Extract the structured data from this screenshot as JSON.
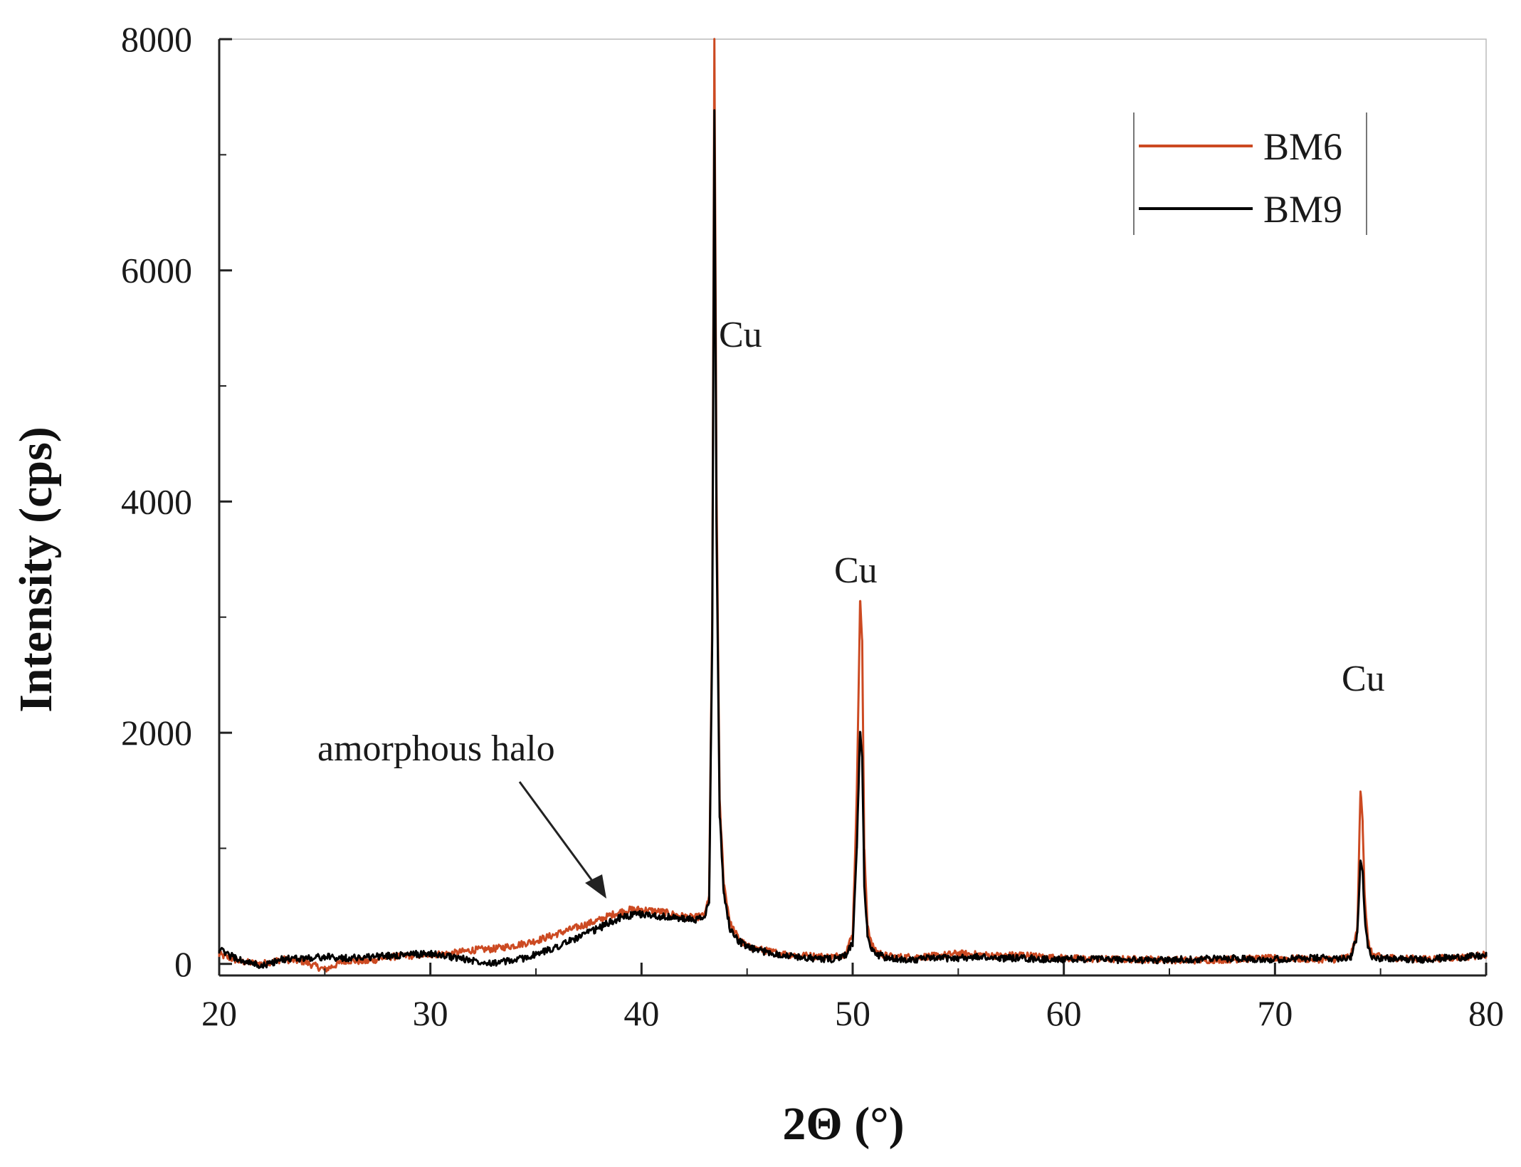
{
  "chart_data": {
    "type": "line",
    "xlabel": "2Θ (°)",
    "ylabel": "Intensity (cps)",
    "xlim": [
      20,
      80
    ],
    "ylim": [
      -100,
      8000
    ],
    "xticks": [
      20,
      30,
      40,
      50,
      60,
      70,
      80
    ],
    "yticks": [
      0,
      2000,
      4000,
      6000,
      8000
    ],
    "grid": false,
    "legend_position": "top-right",
    "series": [
      {
        "name": "BM6",
        "color": "#cc4a22",
        "x": [
          20,
          21,
          22,
          23,
          24,
          25,
          26,
          27,
          28,
          29,
          30,
          31,
          32,
          33,
          34,
          35,
          36,
          37,
          38,
          38.5,
          39,
          39.5,
          40,
          40.5,
          41,
          41.5,
          42,
          42.5,
          43,
          43.2,
          43.35,
          43.45,
          43.55,
          43.7,
          43.9,
          44.2,
          44.6,
          45,
          46,
          47,
          48,
          49,
          49.6,
          50,
          50.2,
          50.35,
          50.45,
          50.55,
          50.7,
          50.9,
          51.2,
          51.6,
          52,
          53,
          54,
          55,
          56,
          57,
          58,
          59,
          60,
          62,
          64,
          66,
          68,
          70,
          72,
          73,
          73.6,
          73.9,
          74.05,
          74.15,
          74.25,
          74.4,
          74.6,
          75,
          76,
          77,
          78,
          79,
          80
        ],
        "y": [
          80,
          20,
          0,
          40,
          20,
          -50,
          30,
          20,
          60,
          70,
          80,
          90,
          120,
          130,
          160,
          200,
          260,
          320,
          380,
          420,
          450,
          470,
          470,
          460,
          450,
          430,
          410,
          400,
          420,
          600,
          3000,
          8000,
          4200,
          1400,
          700,
          350,
          220,
          150,
          110,
          80,
          70,
          60,
          80,
          250,
          1500,
          3150,
          2800,
          1000,
          350,
          160,
          100,
          70,
          60,
          60,
          70,
          90,
          80,
          70,
          80,
          60,
          50,
          40,
          40,
          30,
          40,
          50,
          40,
          40,
          70,
          300,
          1500,
          1250,
          600,
          200,
          80,
          60,
          50,
          40,
          50,
          60,
          80
        ]
      },
      {
        "name": "BM9",
        "color": "#000000",
        "x": [
          20,
          21,
          22,
          23,
          24,
          25,
          26,
          27,
          28,
          29,
          30,
          31,
          32,
          33,
          34,
          35,
          36,
          37,
          38,
          38.5,
          39,
          39.5,
          40,
          40.5,
          41,
          41.5,
          42,
          42.5,
          43,
          43.2,
          43.35,
          43.45,
          43.55,
          43.7,
          43.9,
          44.2,
          44.6,
          45,
          46,
          47,
          48,
          49,
          49.6,
          50,
          50.2,
          50.35,
          50.45,
          50.55,
          50.7,
          50.9,
          51.2,
          51.6,
          52,
          53,
          54,
          55,
          56,
          57,
          58,
          59,
          60,
          62,
          64,
          66,
          68,
          70,
          72,
          73,
          73.6,
          73.9,
          74.05,
          74.15,
          74.25,
          74.4,
          74.6,
          75,
          76,
          77,
          78,
          79,
          80
        ],
        "y": [
          120,
          30,
          -20,
          40,
          50,
          60,
          50,
          60,
          70,
          80,
          90,
          60,
          30,
          10,
          30,
          80,
          150,
          230,
          310,
          360,
          400,
          420,
          430,
          420,
          410,
          400,
          390,
          380,
          400,
          550,
          2800,
          7400,
          3800,
          1300,
          600,
          300,
          200,
          140,
          100,
          70,
          50,
          40,
          60,
          180,
          1000,
          2000,
          1800,
          700,
          250,
          120,
          80,
          50,
          40,
          40,
          50,
          50,
          60,
          50,
          50,
          40,
          40,
          40,
          30,
          40,
          50,
          40,
          50,
          50,
          60,
          250,
          900,
          800,
          400,
          150,
          70,
          50,
          40,
          40,
          50,
          60,
          70
        ]
      }
    ],
    "annotations": [
      {
        "text": "amorphous halo",
        "x": 38.5,
        "y": 560
      },
      {
        "text": "Cu",
        "x": 43.5,
        "y": 5400
      },
      {
        "text": "Cu",
        "x": 50.5,
        "y": 3400
      },
      {
        "text": "Cu",
        "x": 74.2,
        "y": 2400
      }
    ]
  }
}
